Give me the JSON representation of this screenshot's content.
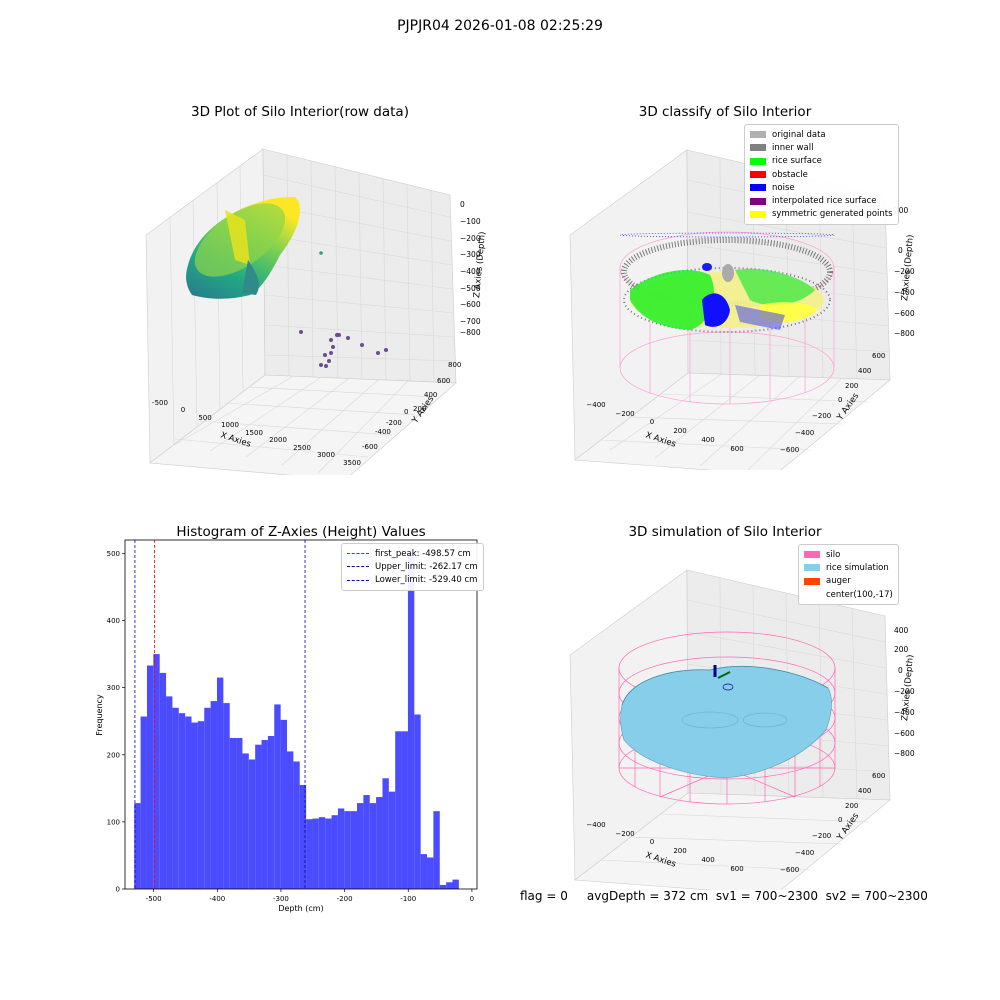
{
  "figure": {
    "suptitle": "PJPJR04 2026-01-08 02:25:29",
    "footer": "flag = 0     avgDepth = 372 cm  sv1 = 700~2300  sv2 = 700~2300"
  },
  "colors": {
    "hist_bar": "#4b4bff",
    "first_peak_line": "#ff0000",
    "limit_line": "#0000cc",
    "silo": "#ff69b4",
    "rice_simulation": "#87ceeb",
    "auger": "#ff4500"
  },
  "panels": {
    "raw": {
      "title": "3D Plot of Silo Interior(row data)",
      "xlabel": "X Axies",
      "ylabel": "Y Axies",
      "zlabel": "Z Axies (Depth)",
      "x_ticks": [
        "-500",
        "0",
        "500",
        "1000",
        "1500",
        "2000",
        "2500",
        "3000",
        "3500"
      ],
      "y_ticks": [
        "800",
        "600",
        "400",
        "200",
        "0",
        "-200",
        "-400",
        "-600"
      ],
      "z_ticks": [
        "0",
        "−100",
        "−200",
        "−300",
        "−400",
        "−500",
        "−600",
        "−700",
        "−800"
      ]
    },
    "classify": {
      "title": "3D classify of Silo Interior",
      "xlabel": "X Axies",
      "ylabel": "Y Axies",
      "zlabel": "Z Axies (Depth)",
      "x_ticks": [
        "−400",
        "−200",
        "0",
        "200",
        "400",
        "600"
      ],
      "y_ticks": [
        "600",
        "400",
        "200",
        "0",
        "−200",
        "−400",
        "−600"
      ],
      "z_ticks": [
        "200",
        "0",
        "−200",
        "−400",
        "−600",
        "−800"
      ],
      "legend": [
        {
          "label": "original data",
          "color": "#b0b0b0"
        },
        {
          "label": "inner wall",
          "color": "#808080"
        },
        {
          "label": "rice surface",
          "color": "#00ff00"
        },
        {
          "label": "obstacle",
          "color": "#ff0000"
        },
        {
          "label": "noise",
          "color": "#0000ff"
        },
        {
          "label": "interpolated rice surface",
          "color": "#800080"
        },
        {
          "label": "symmetric generated points",
          "color": "#ffff00"
        }
      ]
    },
    "simulation": {
      "title": "3D simulation of Silo Interior",
      "xlabel": "X Axies",
      "ylabel": "Y Axies",
      "zlabel": "Z Axies (Depth)",
      "x_ticks": [
        "−400",
        "−200",
        "0",
        "200",
        "400",
        "600"
      ],
      "y_ticks": [
        "600",
        "400",
        "200",
        "0",
        "−200",
        "−400",
        "−600"
      ],
      "z_ticks": [
        "400",
        "200",
        "0",
        "−200",
        "−400",
        "−600",
        "−800"
      ],
      "legend": [
        {
          "label": "silo",
          "color": "#ff69b4"
        },
        {
          "label": "rice simulation",
          "color": "#87ceeb"
        },
        {
          "label": "auger",
          "color": "#ff4500"
        },
        {
          "label": "center(100,-17)",
          "color": ""
        }
      ]
    }
  },
  "chart_data": {
    "type": "bar",
    "title": "Histogram of Z-Axies (Height) Values",
    "xlabel": "Depth (cm)",
    "ylabel": "Frequency",
    "xlim": [
      -545,
      8
    ],
    "ylim": [
      0,
      520
    ],
    "x_ticks": [
      -500,
      -400,
      -300,
      -200,
      -100,
      0
    ],
    "y_ticks": [
      0,
      100,
      200,
      300,
      400,
      500
    ],
    "bin_start": -530.5,
    "bin_width": 10,
    "values": [
      128,
      257,
      333,
      350,
      322,
      287,
      270,
      262,
      257,
      248,
      250,
      270,
      280,
      315,
      277,
      225,
      225,
      202,
      193,
      215,
      222,
      228,
      275,
      252,
      205,
      190,
      155,
      104,
      105,
      107,
      105,
      110,
      120,
      116,
      116,
      128,
      140,
      128,
      137,
      165,
      145,
      235,
      235,
      500,
      260,
      52,
      47,
      116,
      6,
      10,
      14
    ],
    "vlines": [
      {
        "name": "first_peak",
        "label": "first_peak: -498.57 cm",
        "x": -498.57,
        "color": "#ff0000"
      },
      {
        "name": "upper_limit",
        "label": "Upper_limit: -262.17 cm",
        "x": -262.17,
        "color": "#0000cc"
      },
      {
        "name": "lower_limit",
        "label": "Lower_limit: -529.40 cm",
        "x": -529.4,
        "color": "#0000cc"
      }
    ]
  }
}
